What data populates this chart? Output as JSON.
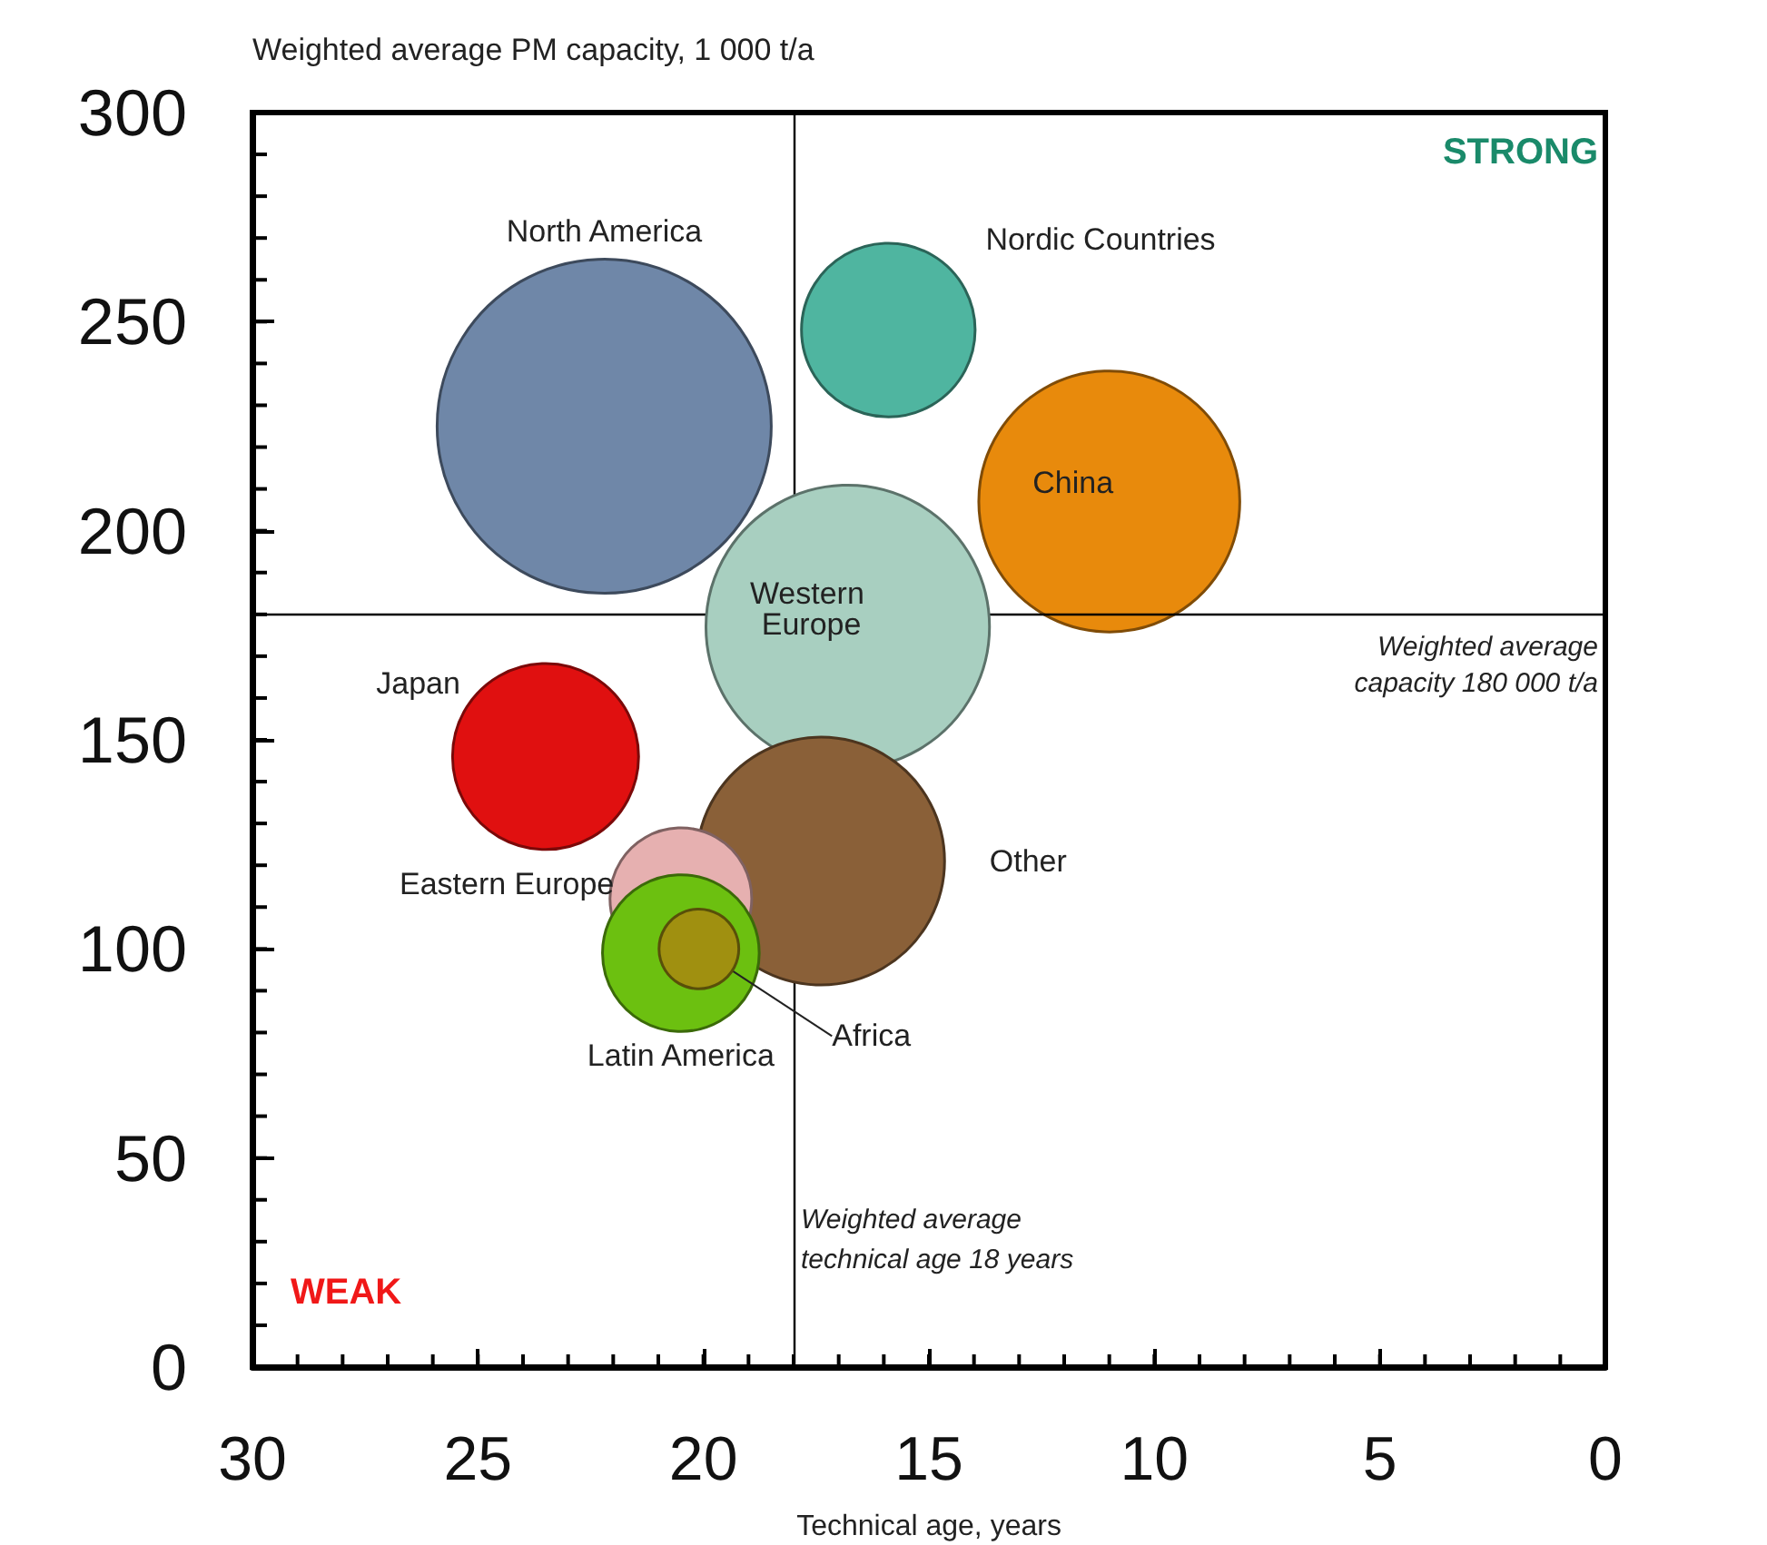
{
  "chart_data": {
    "type": "bubble",
    "ylabel": "Weighted average PM capacity, 1 000 t/a",
    "xlabel": "Technical age, years",
    "xlim": [
      30,
      0
    ],
    "xticks": [
      30,
      25,
      20,
      15,
      10,
      5,
      0
    ],
    "ylim": [
      0,
      300
    ],
    "yticks": [
      0,
      50,
      100,
      150,
      200,
      250,
      300
    ],
    "grid": false,
    "legend": false,
    "series": [
      {
        "name": "North America",
        "color": "#6f87a8",
        "x": [
          22.2
        ],
        "values": [
          225
        ],
        "sizes": [
          1
        ]
      },
      {
        "name": "Nordic Countries",
        "color": "#4fb5a0",
        "x": [
          15.9
        ],
        "values": [
          248
        ],
        "sizes": [
          0.27
        ]
      },
      {
        "name": "China",
        "color": "#e88a0c",
        "x": [
          11.0
        ],
        "values": [
          207
        ],
        "sizes": [
          0.61
        ]
      },
      {
        "name": "Western Europe",
        "color": "#a8cfc0",
        "x": [
          16.8
        ],
        "values": [
          177
        ],
        "sizes": [
          0.72
        ]
      },
      {
        "name": "Japan",
        "color": "#e01010",
        "x": [
          23.5
        ],
        "values": [
          146
        ],
        "sizes": [
          0.31
        ]
      },
      {
        "name": "Other",
        "color": "#8a6038",
        "x": [
          17.4
        ],
        "values": [
          121
        ],
        "sizes": [
          0.55
        ]
      },
      {
        "name": "Eastern Europe",
        "color": "#e6b0b0",
        "x": [
          20.5
        ],
        "values": [
          112
        ],
        "sizes": [
          0.18
        ]
      },
      {
        "name": "Latin America",
        "color": "#6cc010",
        "x": [
          20.5
        ],
        "values": [
          99
        ],
        "sizes": [
          0.22
        ]
      },
      {
        "name": "Africa",
        "color": "#a09010",
        "x": [
          20.1
        ],
        "values": [
          100
        ],
        "sizes": [
          0.057
        ]
      }
    ],
    "ref_lines": [
      {
        "axis": "y",
        "value": 180,
        "label": "Weighted average\ncapacity 180 000 t/a"
      },
      {
        "axis": "x",
        "value": 18,
        "label": "Weighted average\ntechnical age 18 years"
      }
    ],
    "annotations": [
      "STRONG",
      "WEAK"
    ]
  }
}
